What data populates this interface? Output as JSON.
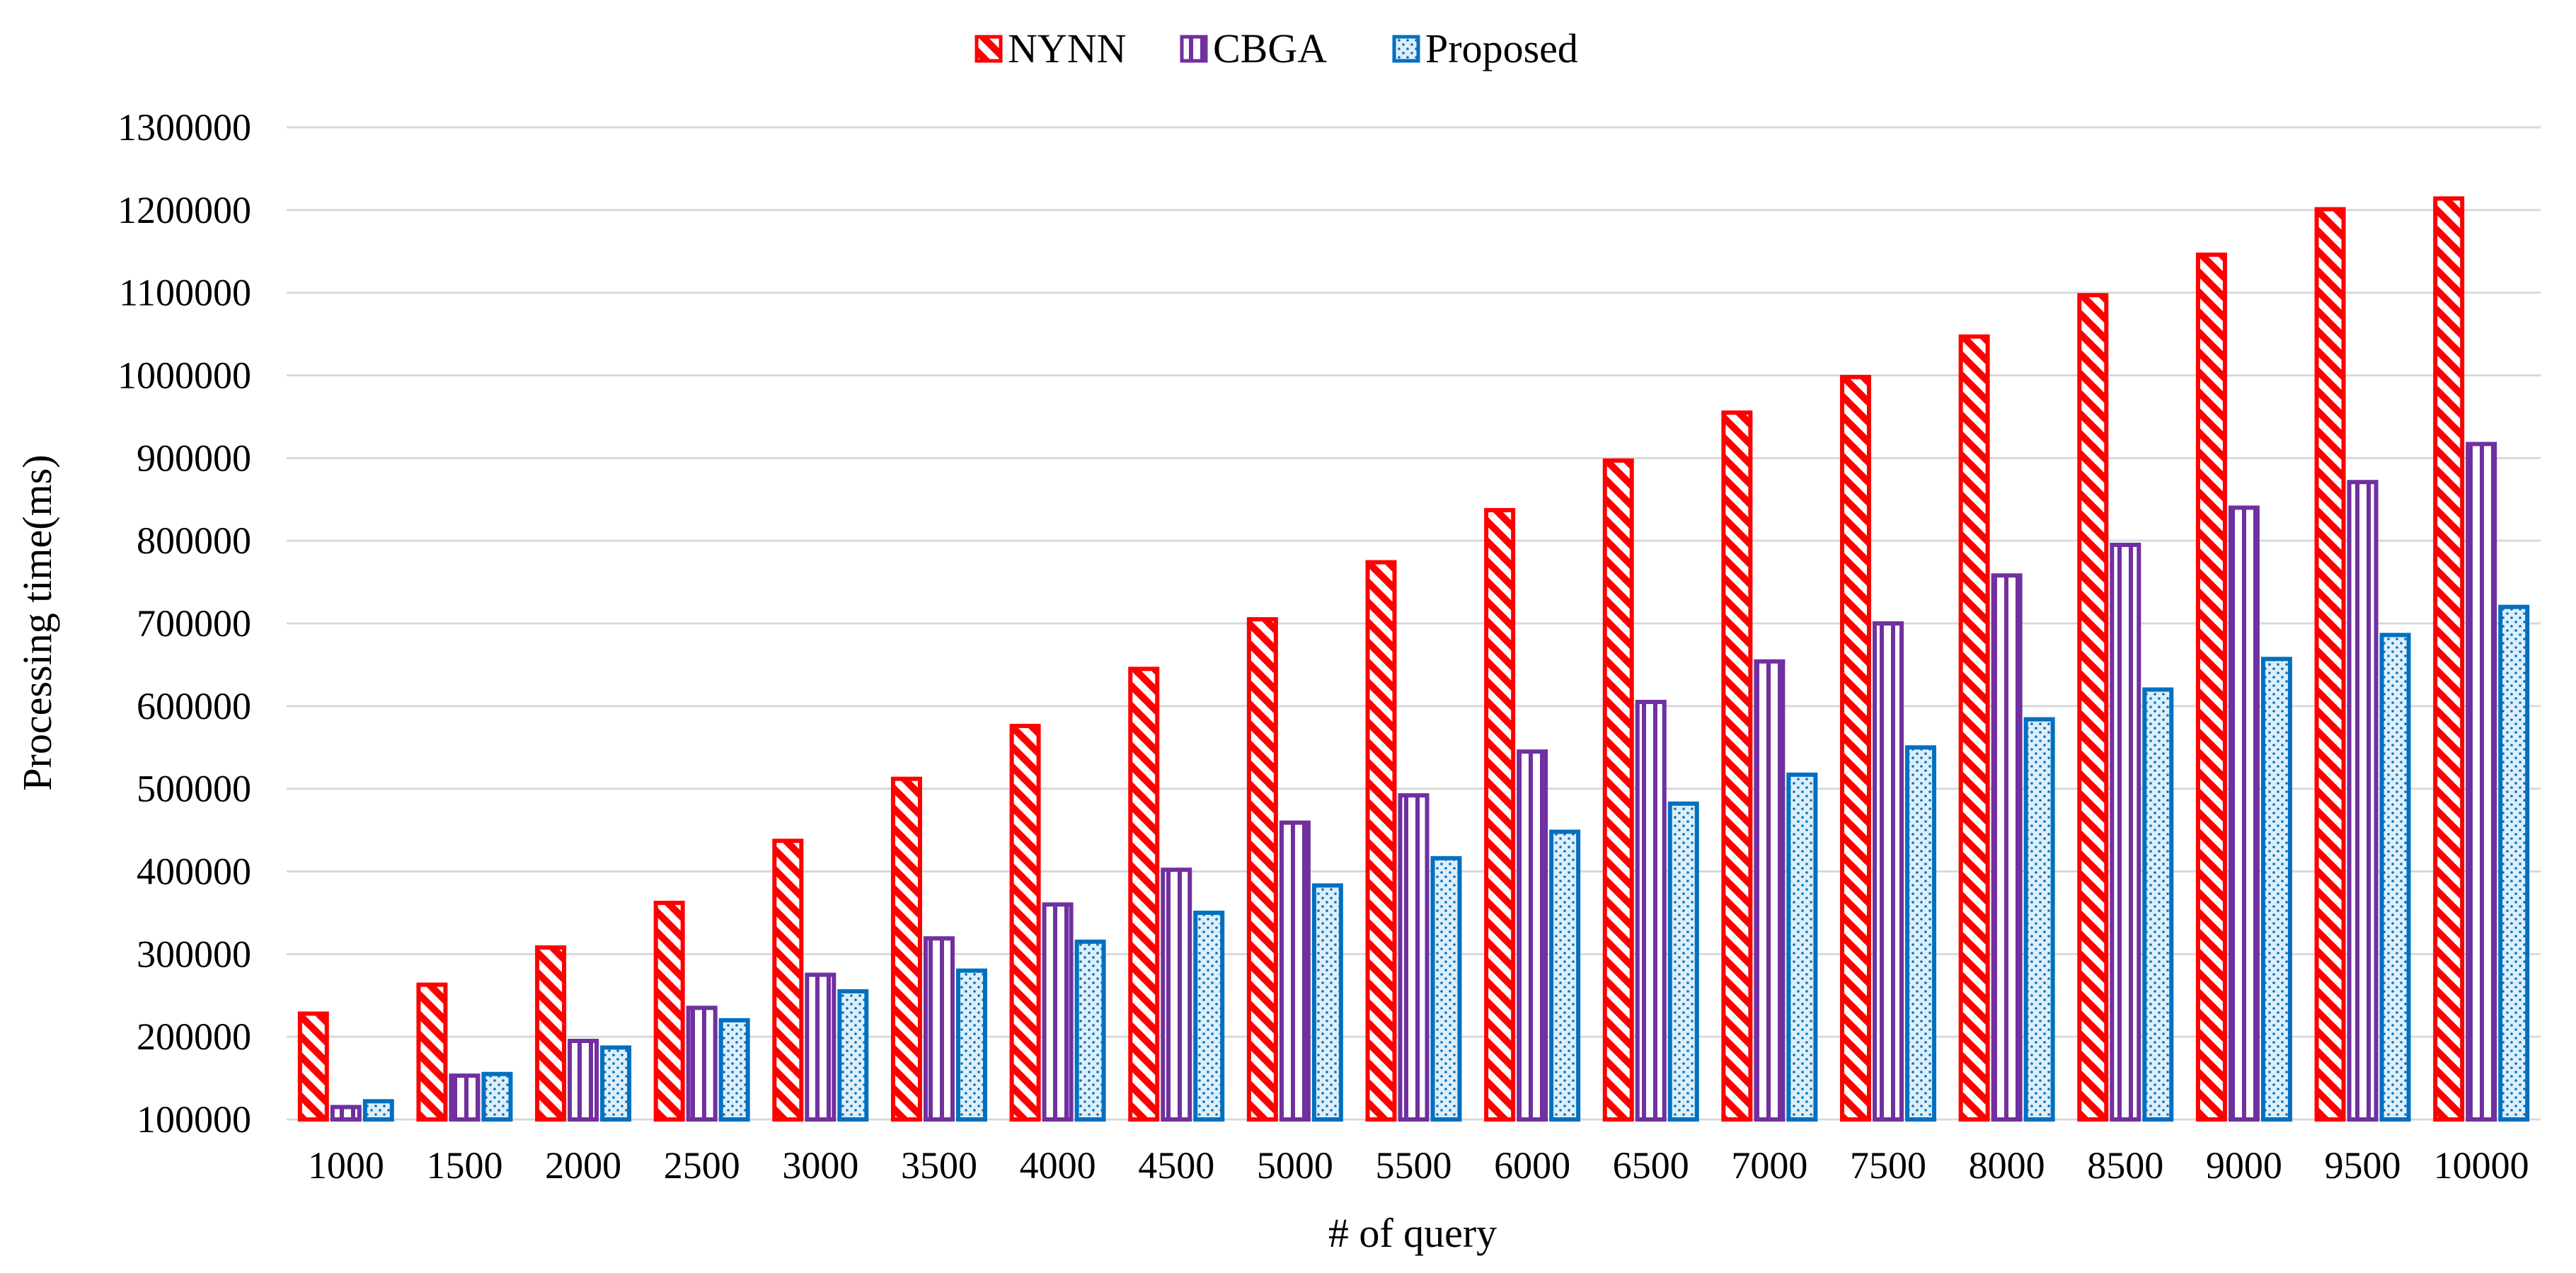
{
  "chart_data": {
    "type": "bar",
    "title": "",
    "xlabel": "# of query",
    "ylabel": "Processing time(ms)",
    "ylim": [
      100000,
      1300000
    ],
    "ytick_step": 100000,
    "grid": true,
    "legend_position": "top-center",
    "categories": [
      "1000",
      "1500",
      "2000",
      "2500",
      "3000",
      "3500",
      "4000",
      "4500",
      "5000",
      "5500",
      "6000",
      "6500",
      "7000",
      "7500",
      "8000",
      "8500",
      "9000",
      "9500",
      "10000"
    ],
    "series": [
      {
        "name": "NYNN",
        "color": "#ff0000",
        "pattern": "diagonal-hatch",
        "values": [
          228000,
          263000,
          308000,
          362000,
          437000,
          512000,
          576000,
          645000,
          705000,
          774000,
          837000,
          897000,
          955000,
          998000,
          1047000,
          1097000,
          1146000,
          1201000,
          1214000
        ]
      },
      {
        "name": "CBGA",
        "color": "#7030a0",
        "pattern": "vertical-stripes",
        "values": [
          115000,
          153000,
          195000,
          235000,
          275000,
          319000,
          360000,
          402000,
          459000,
          492000,
          545000,
          605000,
          654000,
          700000,
          758000,
          795000,
          840000,
          871000,
          917000
        ]
      },
      {
        "name": "Proposed",
        "color": "#0070c0",
        "pattern": "dots",
        "values": [
          122000,
          155000,
          187000,
          220000,
          255000,
          280000,
          315000,
          350000,
          383000,
          416000,
          448000,
          482000,
          517000,
          550000,
          584000,
          620000,
          657000,
          686000,
          720000
        ]
      }
    ]
  }
}
